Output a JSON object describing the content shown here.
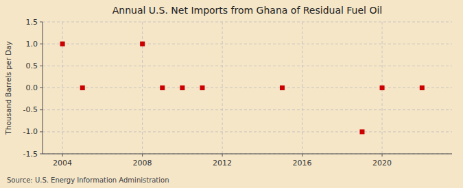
{
  "chart_data": {
    "type": "scatter",
    "title": "Annual U.S. Net Imports from Ghana of Residual Fuel Oil",
    "ylabel": "Thousand Barrels per Day",
    "annotations": [
      "Source: U.S. Energy Information Administration"
    ],
    "x": [
      2004,
      2005,
      2008,
      2009,
      2010,
      2011,
      2015,
      2019,
      2020,
      2022
    ],
    "values": [
      1.0,
      0.0,
      1.0,
      0.0,
      0.0,
      0.0,
      0.0,
      -1.0,
      0.0,
      0.0
    ],
    "color": "#cc0000",
    "marker": "square",
    "xlim": [
      2003.0,
      2023.5
    ],
    "ylim": [
      -1.5,
      1.5
    ],
    "xticks": [
      2004,
      2008,
      2012,
      2016,
      2020
    ],
    "yticks": [
      -1.5,
      {
        "value": -1.0,
        "label": "-1.0"
      },
      -0.5,
      {
        "value": 0.0,
        "label": "0.0"
      },
      0.5,
      {
        "value": 1.0,
        "label": "1.0"
      },
      1.5
    ],
    "grid": true
  }
}
